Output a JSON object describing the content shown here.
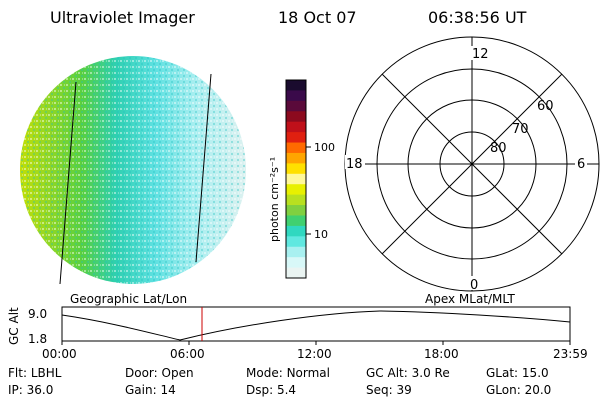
{
  "header": {
    "instrument": "Ultraviolet Imager",
    "date": "18 Oct 07",
    "time": "06:38:56 UT"
  },
  "colorbar": {
    "label": "photon cm⁻²s⁻¹",
    "ticks": [
      "100",
      "10"
    ],
    "colors": [
      "#1a0b2e",
      "#3a0a4a",
      "#5a0a3a",
      "#8c0a1e",
      "#c0101a",
      "#e02010",
      "#ff6a00",
      "#ffa500",
      "#ffe000",
      "#fff89a",
      "#e8f000",
      "#b8e020",
      "#80d040",
      "#40d070",
      "#30d8c0",
      "#60e8e0",
      "#a8f0f0",
      "#d8f8f8",
      "#eaf4f2"
    ]
  },
  "left_panel": {
    "label": "Geographic Lat/Lon"
  },
  "right_panel": {
    "label": "Apex MLat/MLT",
    "mlt_labels": {
      "top": "12",
      "left": "18",
      "right": "6",
      "bottom": "0"
    },
    "lat_labels": [
      "60",
      "70",
      "80"
    ]
  },
  "altitude_plot": {
    "ylabel": "GC Alt",
    "y_ticks": [
      "9.0",
      "1.8"
    ],
    "x_ticks": [
      "00:00",
      "06:00",
      "12:00",
      "18:00",
      "23:59"
    ]
  },
  "footer": {
    "row1": [
      {
        "label": "Flt:",
        "value": "LBHL"
      },
      {
        "label": "Door:",
        "value": "Open"
      },
      {
        "label": "Mode:",
        "value": "Normal"
      },
      {
        "label": "GC Alt:",
        "value": "3.0 Re"
      },
      {
        "label": "GLat:",
        "value": "15.0"
      }
    ],
    "row2": [
      {
        "label": "IP:",
        "value": "36.0"
      },
      {
        "label": "Gain:",
        "value": "14"
      },
      {
        "label": "Dsp:",
        "value": "5.4"
      },
      {
        "label": "Seq:",
        "value": "39"
      },
      {
        "label": "GLon:",
        "value": "20.0"
      }
    ]
  }
}
